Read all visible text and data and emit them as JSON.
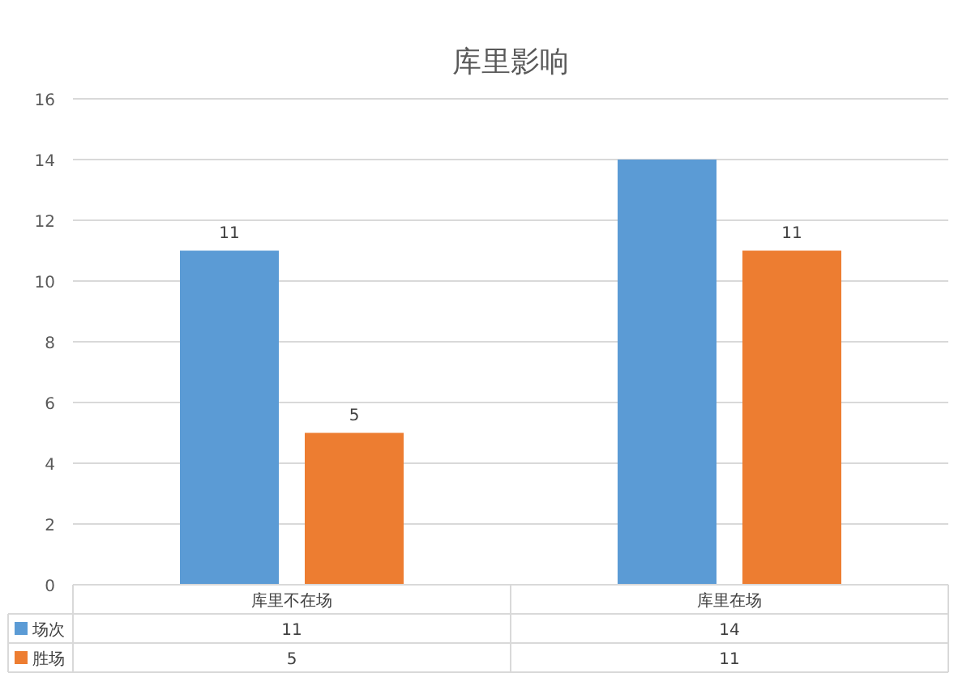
{
  "chart_data": {
    "type": "bar",
    "title": "库里影响",
    "categories": [
      "库里不在场",
      "库里在场"
    ],
    "series": [
      {
        "name": "场次",
        "color": "#5b9bd5",
        "values": [
          11,
          14
        ],
        "value_labels": [
          "11",
          null
        ]
      },
      {
        "name": "胜场",
        "color": "#ed7d31",
        "values": [
          5,
          11
        ],
        "value_labels": [
          "5",
          "11"
        ]
      }
    ],
    "annotations": [
      "11",
      "14",
      "5",
      "11"
    ],
    "ylim": [
      0,
      16
    ],
    "yticks": [
      0,
      2,
      4,
      6,
      8,
      10,
      12,
      14,
      16
    ],
    "grid": "y",
    "legend": "bottom",
    "data_labels": true
  }
}
